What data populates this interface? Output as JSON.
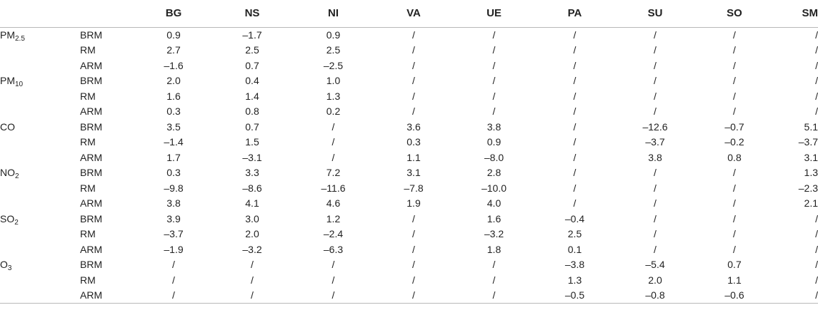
{
  "table": {
    "columns": [
      "BG",
      "NS",
      "NI",
      "VA",
      "UE",
      "PA",
      "SU",
      "SO",
      "SM"
    ],
    "groups": [
      {
        "pollutant": {
          "base": "PM",
          "sub": "2.5"
        },
        "rows": [
          {
            "model": "BRM",
            "values": [
              "0.9",
              "–1.7",
              "0.9",
              "/",
              "/",
              "/",
              "/",
              "/",
              "/"
            ]
          },
          {
            "model": "RM",
            "values": [
              "2.7",
              "2.5",
              "2.5",
              "/",
              "/",
              "/",
              "/",
              "/",
              "/"
            ]
          },
          {
            "model": "ARM",
            "values": [
              "–1.6",
              "0.7",
              "–2.5",
              "/",
              "/",
              "/",
              "/",
              "/",
              "/"
            ]
          }
        ]
      },
      {
        "pollutant": {
          "base": "PM",
          "sub": "10"
        },
        "rows": [
          {
            "model": "BRM",
            "values": [
              "2.0",
              "0.4",
              "1.0",
              "/",
              "/",
              "/",
              "/",
              "/",
              "/"
            ]
          },
          {
            "model": "RM",
            "values": [
              "1.6",
              "1.4",
              "1.3",
              "/",
              "/",
              "/",
              "/",
              "/",
              "/"
            ]
          },
          {
            "model": "ARM",
            "values": [
              "0.3",
              "0.8",
              "0.2",
              "/",
              "/",
              "/",
              "/",
              "/",
              "/"
            ]
          }
        ]
      },
      {
        "pollutant": {
          "base": "CO",
          "sub": ""
        },
        "rows": [
          {
            "model": "BRM",
            "values": [
              "3.5",
              "0.7",
              "/",
              "3.6",
              "3.8",
              "/",
              "–12.6",
              "–0.7",
              "5.1"
            ]
          },
          {
            "model": "RM",
            "values": [
              "–1.4",
              "1.5",
              "/",
              "0.3",
              "0.9",
              "/",
              "–3.7",
              "–0.2",
              "–3.7"
            ]
          },
          {
            "model": "ARM",
            "values": [
              "1.7",
              "–3.1",
              "/",
              "1.1",
              "–8.0",
              "/",
              "3.8",
              "0.8",
              "3.1"
            ]
          }
        ]
      },
      {
        "pollutant": {
          "base": "NO",
          "sub": "2"
        },
        "rows": [
          {
            "model": "BRM",
            "values": [
              "0.3",
              "3.3",
              "7.2",
              "3.1",
              "2.8",
              "/",
              "/",
              "/",
              "1.3"
            ]
          },
          {
            "model": "RM",
            "values": [
              "–9.8",
              "–8.6",
              "–11.6",
              "–7.8",
              "–10.0",
              "/",
              "/",
              "/",
              "–2.3"
            ]
          },
          {
            "model": "ARM",
            "values": [
              "3.8",
              "4.1",
              "4.6",
              "1.9",
              "4.0",
              "/",
              "/",
              "/",
              "2.1"
            ]
          }
        ]
      },
      {
        "pollutant": {
          "base": "SO",
          "sub": "2"
        },
        "rows": [
          {
            "model": "BRM",
            "values": [
              "3.9",
              "3.0",
              "1.2",
              "/",
              "1.6",
              "–0.4",
              "/",
              "/",
              "/"
            ]
          },
          {
            "model": "RM",
            "values": [
              "–3.7",
              "2.0",
              "–2.4",
              "/",
              "–3.2",
              "2.5",
              "/",
              "/",
              "/"
            ]
          },
          {
            "model": "ARM",
            "values": [
              "–1.9",
              "–3.2",
              "–6.3",
              "/",
              "1.8",
              "0.1",
              "/",
              "/",
              "/"
            ]
          }
        ]
      },
      {
        "pollutant": {
          "base": "O",
          "sub": "3"
        },
        "rows": [
          {
            "model": "BRM",
            "values": [
              "/",
              "/",
              "/",
              "/",
              "/",
              "–3.8",
              "–5.4",
              "0.7",
              "/"
            ]
          },
          {
            "model": "RM",
            "values": [
              "/",
              "/",
              "/",
              "/",
              "/",
              "1.3",
              "2.0",
              "1.1",
              "/"
            ]
          },
          {
            "model": "ARM",
            "values": [
              "/",
              "/",
              "/",
              "/",
              "/",
              "–0.5",
              "–0.8",
              "–0.6",
              "/"
            ]
          }
        ]
      }
    ]
  }
}
